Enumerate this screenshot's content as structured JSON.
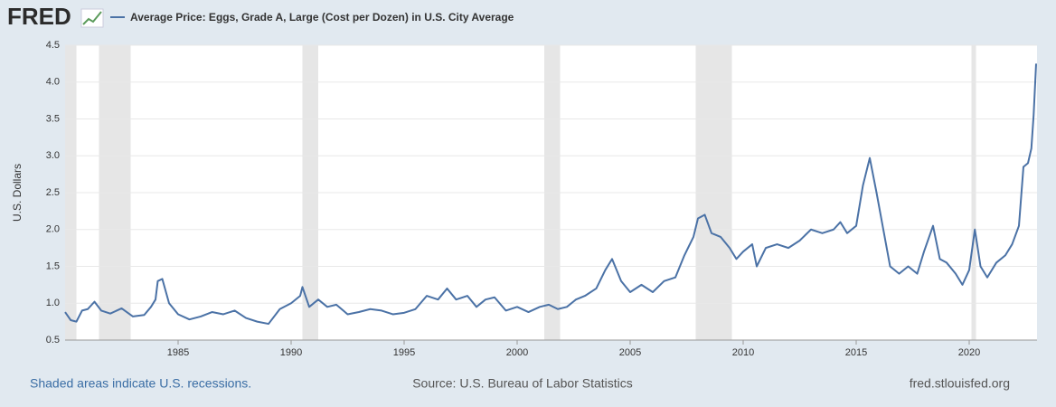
{
  "logo": "FRED",
  "chart_data": {
    "type": "line",
    "ylabel": "U.S. Dollars",
    "x": [
      1980.0,
      1980.25,
      1980.5,
      1980.75,
      1981.0,
      1981.3,
      1981.6,
      1982.0,
      1982.5,
      1983.0,
      1983.5,
      1983.8,
      1984.0,
      1984.1,
      1984.3,
      1984.6,
      1985.0,
      1985.5,
      1986.0,
      1986.5,
      1987.0,
      1987.5,
      1988.0,
      1988.5,
      1989.0,
      1989.5,
      1990.0,
      1990.4,
      1990.5,
      1990.8,
      1991.2,
      1991.6,
      1992.0,
      1992.5,
      1993.0,
      1993.5,
      1994.0,
      1994.5,
      1995.0,
      1995.5,
      1996.0,
      1996.5,
      1996.9,
      1997.3,
      1997.8,
      1998.2,
      1998.6,
      1999.0,
      1999.5,
      2000.0,
      2000.5,
      2001.0,
      2001.4,
      2001.8,
      2002.2,
      2002.6,
      2003.0,
      2003.5,
      2003.9,
      2004.2,
      2004.6,
      2005.0,
      2005.5,
      2006.0,
      2006.5,
      2007.0,
      2007.4,
      2007.8,
      2008.0,
      2008.3,
      2008.6,
      2009.0,
      2009.4,
      2009.7,
      2010.0,
      2010.4,
      2010.6,
      2011.0,
      2011.5,
      2012.0,
      2012.5,
      2013.0,
      2013.5,
      2014.0,
      2014.3,
      2014.6,
      2015.0,
      2015.3,
      2015.6,
      2015.9,
      2016.2,
      2016.5,
      2016.9,
      2017.3,
      2017.7,
      2018.0,
      2018.4,
      2018.7,
      2019.0,
      2019.4,
      2019.7,
      2020.0,
      2020.25,
      2020.5,
      2020.8,
      2021.2,
      2021.6,
      2021.9,
      2022.2,
      2022.4,
      2022.6,
      2022.75,
      2022.85,
      2022.96
    ],
    "series": [
      {
        "name": "Average Price: Eggs, Grade A, Large (Cost per Dozen) in U.S. City Average",
        "color": "#4b72a6",
        "values": [
          0.88,
          0.77,
          0.75,
          0.9,
          0.92,
          1.02,
          0.9,
          0.86,
          0.93,
          0.82,
          0.84,
          0.95,
          1.05,
          1.3,
          1.33,
          1.0,
          0.85,
          0.78,
          0.82,
          0.88,
          0.85,
          0.9,
          0.8,
          0.75,
          0.72,
          0.92,
          1.0,
          1.1,
          1.22,
          0.95,
          1.05,
          0.95,
          0.98,
          0.85,
          0.88,
          0.92,
          0.9,
          0.85,
          0.87,
          0.92,
          1.1,
          1.05,
          1.2,
          1.05,
          1.1,
          0.95,
          1.05,
          1.08,
          0.9,
          0.95,
          0.88,
          0.95,
          0.98,
          0.92,
          0.95,
          1.05,
          1.1,
          1.2,
          1.45,
          1.6,
          1.3,
          1.15,
          1.25,
          1.15,
          1.3,
          1.35,
          1.65,
          1.9,
          2.15,
          2.2,
          1.95,
          1.9,
          1.75,
          1.6,
          1.7,
          1.8,
          1.5,
          1.75,
          1.8,
          1.75,
          1.85,
          2.0,
          1.95,
          2.0,
          2.1,
          1.95,
          2.05,
          2.6,
          2.97,
          2.5,
          2.0,
          1.5,
          1.4,
          1.5,
          1.4,
          1.7,
          2.05,
          1.6,
          1.55,
          1.4,
          1.25,
          1.45,
          2.0,
          1.5,
          1.35,
          1.55,
          1.65,
          1.8,
          2.05,
          2.85,
          2.9,
          3.1,
          3.55,
          4.25
        ]
      }
    ],
    "recessions": [
      [
        1980.0,
        1980.5
      ],
      [
        1981.5,
        1982.9
      ],
      [
        1990.5,
        1991.2
      ],
      [
        2001.2,
        2001.9
      ],
      [
        2007.9,
        2009.5
      ],
      [
        2020.1,
        2020.3
      ]
    ],
    "xlim": [
      1980.0,
      2023.0
    ],
    "xticks": [
      1985,
      1990,
      1995,
      2000,
      2005,
      2010,
      2015,
      2020
    ],
    "ylim": [
      0.5,
      4.5
    ],
    "yticks": [
      0.5,
      {
        "value": 1,
        "label": "1.0"
      },
      1.5,
      {
        "value": 2,
        "label": "2.0"
      },
      2.5,
      {
        "value": 3,
        "label": "3.0"
      },
      3.5,
      {
        "value": 4,
        "label": "4.0"
      },
      4.5
    ],
    "grid": true,
    "recession_note": "Shaded areas indicate U.S. recessions.",
    "source": "Source: U.S. Bureau of Labor Statistics",
    "site": "fred.stlouisfed.org"
  }
}
